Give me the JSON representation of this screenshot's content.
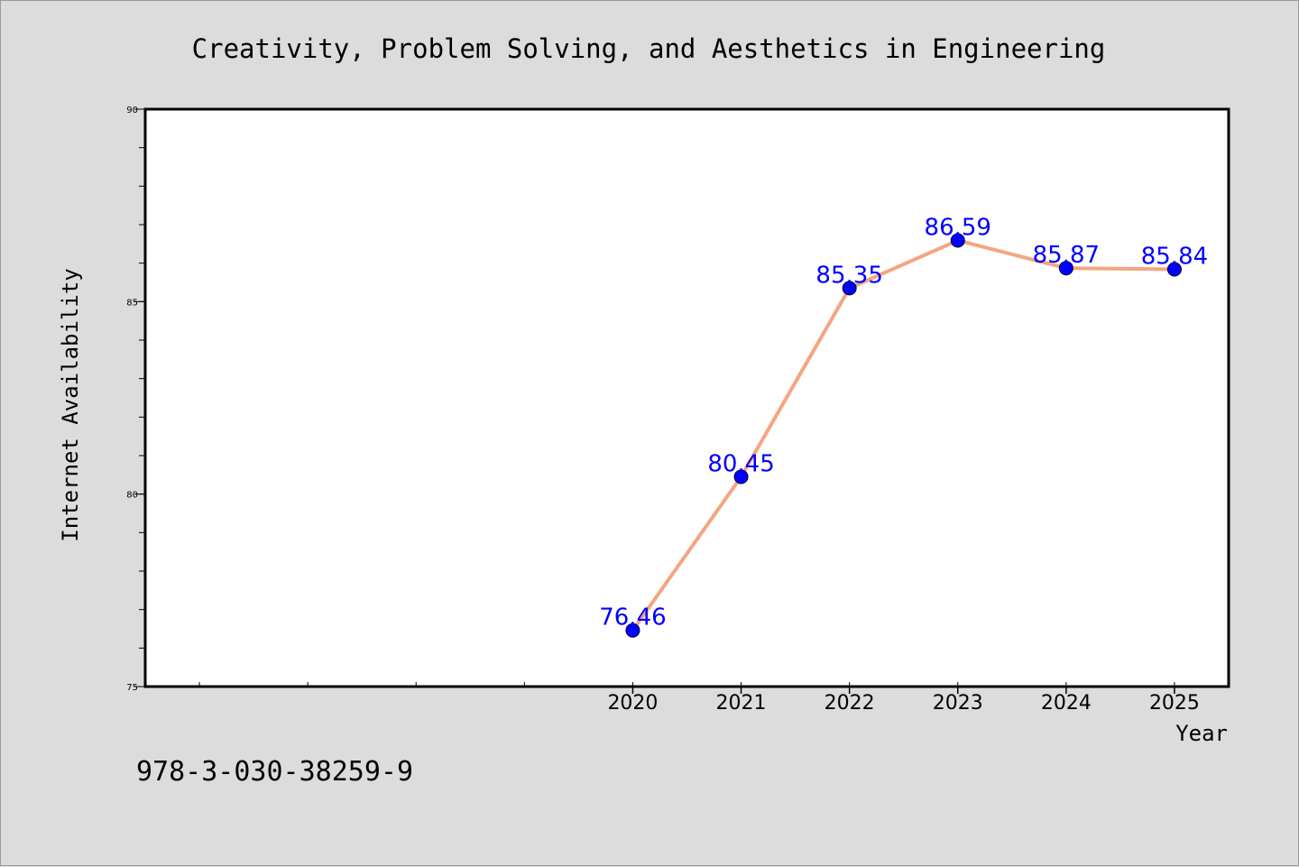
{
  "figure": {
    "isbn": "978-3-030-38259-9"
  },
  "colors": {
    "background": "#dcdcdc",
    "plot_background": "#ffffff",
    "line": "#f4a582",
    "marker": "#0000ff",
    "label": "#0000ff"
  },
  "chart_data": {
    "type": "line",
    "title": "Creativity, Problem Solving, and Aesthetics in Engineering",
    "xlabel": "Year",
    "ylabel": "Internet Availability",
    "x": [
      2020,
      2021,
      2022,
      2023,
      2024,
      2025
    ],
    "x_tick_labels": [
      "2020",
      "2021",
      "2022",
      "2023",
      "2024",
      "2025"
    ],
    "xlim": [
      2015.5,
      2025.5
    ],
    "ylim": [
      75,
      90
    ],
    "y_ticks": [
      75,
      80,
      85,
      90
    ],
    "y_tick_labels": [
      "75",
      "80",
      "85",
      "90"
    ],
    "series": [
      {
        "values": [
          76.46,
          80.45,
          85.35,
          86.59,
          85.87,
          85.84
        ],
        "labels": [
          "76.46",
          "80.45",
          "85.35",
          "86.59",
          "85.87",
          "85.84"
        ]
      }
    ],
    "grid": false,
    "legend": "none"
  }
}
